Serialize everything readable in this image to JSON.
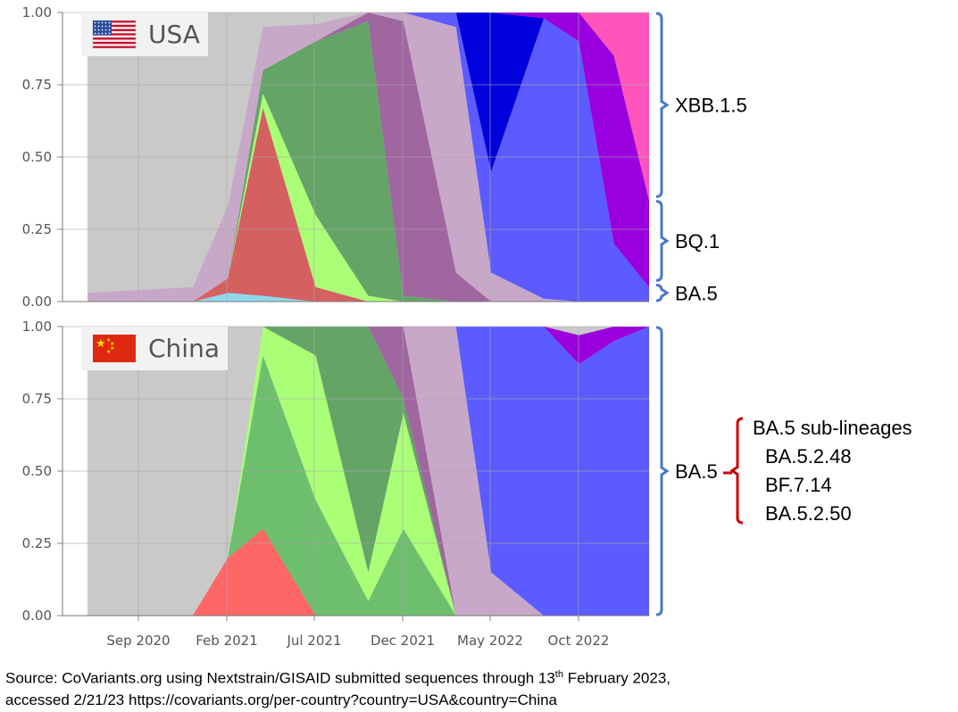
{
  "chart_data": [
    {
      "type": "area",
      "stacked": true,
      "normalized": true,
      "title": "USA",
      "flag": "usa-flag",
      "ylim": [
        0,
        1
      ],
      "yticks": [
        "0.00",
        "0.25",
        "0.50",
        "0.75",
        "1.00"
      ],
      "grid": true,
      "background_series_color": "#c9c9c9",
      "x": [
        "2020-06",
        "2020-09",
        "2020-12",
        "2021-02",
        "2021-04",
        "2021-07",
        "2021-10",
        "2021-12",
        "2022-03",
        "2022-05",
        "2022-08",
        "2022-10",
        "2022-12",
        "2023-02"
      ],
      "series": [
        {
          "color": "#8fd8ec",
          "values": [
            0,
            0,
            0,
            0.03,
            0.02,
            0,
            0,
            0,
            0,
            0,
            0,
            0,
            0,
            0
          ]
        },
        {
          "color": "#d56060",
          "values": [
            0,
            0,
            0,
            0.05,
            0.65,
            0.05,
            0,
            0,
            0,
            0,
            0,
            0,
            0,
            0
          ]
        },
        {
          "color": "#aaff77",
          "values": [
            0,
            0,
            0,
            0,
            0.05,
            0.25,
            0.02,
            0,
            0,
            0,
            0,
            0,
            0,
            0
          ]
        },
        {
          "color": "#65a467",
          "values": [
            0,
            0,
            0,
            0,
            0.08,
            0.6,
            0.95,
            0.02,
            0,
            0,
            0,
            0,
            0,
            0
          ]
        },
        {
          "color": "#a066a0",
          "values": [
            0,
            0,
            0,
            0,
            0,
            0,
            0.03,
            0.95,
            0.1,
            0,
            0,
            0,
            0,
            0
          ]
        },
        {
          "color": "#c8a8c8",
          "values": [
            0.03,
            0.04,
            0.05,
            0.25,
            0.15,
            0.06,
            0,
            0.03,
            0.85,
            0.1,
            0.01,
            0,
            0,
            0
          ]
        },
        {
          "color": "#5b5bff",
          "values": [
            0,
            0,
            0,
            0,
            0,
            0,
            0,
            0,
            0.05,
            0.35,
            0.97,
            0.9,
            0.2,
            0.05
          ]
        },
        {
          "color": "#0000dd",
          "values": [
            0,
            0,
            0,
            0,
            0,
            0,
            0,
            0,
            0,
            0.55,
            0,
            0,
            0,
            0
          ]
        },
        {
          "color": "#9900dd",
          "values": [
            0,
            0,
            0,
            0,
            0,
            0,
            0,
            0,
            0,
            0,
            0.02,
            0.1,
            0.65,
            0.3
          ]
        },
        {
          "color": "#ff55bb",
          "values": [
            0,
            0,
            0,
            0,
            0,
            0,
            0,
            0,
            0,
            0,
            0,
            0,
            0.15,
            0.65
          ]
        }
      ],
      "brackets": [
        {
          "label": "XBB.1.5",
          "from": 0.36,
          "to": 1.0
        },
        {
          "label": "BQ.1",
          "from": 0.07,
          "to": 0.35
        },
        {
          "label": "BA.5",
          "from": 0.0,
          "to": 0.06
        }
      ]
    },
    {
      "type": "area",
      "stacked": true,
      "normalized": true,
      "title": "China",
      "flag": "china-flag",
      "ylim": [
        0,
        1
      ],
      "yticks": [
        "0.00",
        "0.25",
        "0.50",
        "0.75",
        "1.00"
      ],
      "grid": true,
      "background_series_color": "#c9c9c9",
      "x": [
        "2020-06",
        "2020-09",
        "2020-12",
        "2021-02",
        "2021-04",
        "2021-07",
        "2021-10",
        "2021-12",
        "2022-03",
        "2022-05",
        "2022-08",
        "2022-10",
        "2022-12",
        "2023-02"
      ],
      "series": [
        {
          "color": "#ff6666",
          "values": [
            0,
            0,
            0,
            0.2,
            0.3,
            0,
            0,
            0,
            0,
            0,
            0,
            0,
            0,
            0
          ]
        },
        {
          "color": "#6dbf6d",
          "values": [
            0,
            0,
            0,
            0,
            0.6,
            0.4,
            0.05,
            0.3,
            0,
            0,
            0,
            0,
            0,
            0
          ]
        },
        {
          "color": "#aaff77",
          "values": [
            0,
            0,
            0,
            0,
            0.1,
            0.5,
            0.1,
            0.4,
            0,
            0,
            0,
            0,
            0,
            0
          ]
        },
        {
          "color": "#65a467",
          "values": [
            0,
            0,
            0,
            0,
            0,
            0.1,
            0.85,
            0.05,
            0,
            0,
            0,
            0,
            0,
            0
          ]
        },
        {
          "color": "#a066a0",
          "values": [
            0,
            0,
            0,
            0,
            0,
            0,
            0,
            0.25,
            0,
            0,
            0,
            0,
            0,
            0
          ]
        },
        {
          "color": "#c8a8c8",
          "values": [
            0,
            0,
            0,
            0,
            0,
            0,
            0,
            0,
            1.0,
            0.15,
            0,
            0,
            0,
            0
          ]
        },
        {
          "color": "#5b5bff",
          "values": [
            0,
            0,
            0,
            0,
            0,
            0,
            0,
            0,
            0,
            0.85,
            1.0,
            0.87,
            0.95,
            1.0
          ]
        },
        {
          "color": "#9900dd",
          "values": [
            0,
            0,
            0,
            0,
            0,
            0,
            0,
            0,
            0,
            0,
            0,
            0.1,
            0.05,
            0
          ]
        }
      ],
      "brackets": [
        {
          "label": "BA.5",
          "from": 0.0,
          "to": 1.0
        }
      ],
      "sublineage_box": {
        "title": "BA.5 sub-lineages",
        "items": [
          "BA.5.2.48",
          "BF.7.14",
          "BA.5.2.50"
        ]
      }
    }
  ],
  "x_ticks": [
    "Sep 2020",
    "Feb 2021",
    "Jul 2021",
    "Dec 2021",
    "May 2022",
    "Oct 2022"
  ],
  "colors": {
    "bracket_blue": "#4a78c8",
    "bracket_red": "#cc0000",
    "plot_bg": "#c9c9c9",
    "grid": "#a8a8a8"
  },
  "source": {
    "line1_pre": "Source: CoVariants.org using Nextstrain/GISAID submitted sequences through 13",
    "line1_sup": "th",
    "line1_post": " February 2023,",
    "line2": "accessed 2/21/23   https://covariants.org/per-country?country=USA&country=China"
  }
}
